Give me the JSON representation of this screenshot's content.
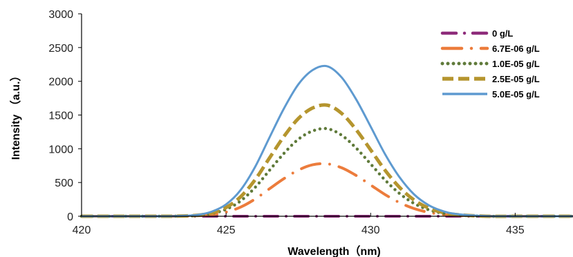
{
  "chart_data": {
    "type": "line",
    "title": "",
    "xlabel": "Wavelength（nm)",
    "ylabel": "Intensity （a.u.）",
    "xlim": [
      420,
      437
    ],
    "ylim": [
      0,
      3000
    ],
    "x_ticks": [
      "420",
      "425",
      "430",
      "435"
    ],
    "y_ticks": [
      "0",
      "500",
      "1000",
      "1500",
      "2000",
      "2500",
      "3000"
    ],
    "grid": false,
    "legend_position": "top-right",
    "series": [
      {
        "name": "0 g/L",
        "color": "#8e2c7b",
        "style": "dash-dot",
        "x": [
          420,
          421,
          422,
          423,
          424,
          425,
          426,
          427,
          428,
          429,
          430,
          431,
          432,
          433,
          434,
          435,
          436,
          437
        ],
        "y": [
          0,
          0,
          0,
          0,
          0,
          0,
          0,
          0,
          0,
          0,
          0,
          0,
          0,
          0,
          0,
          0,
          0,
          0
        ]
      },
      {
        "name": "6.7E-06 g/L",
        "color": "#ec7c3c",
        "style": "long-dash-dot",
        "x": [
          420,
          421,
          422,
          423,
          423.5,
          424,
          424.5,
          425,
          425.5,
          426,
          426.5,
          427,
          427.5,
          428,
          428.5,
          429,
          429.5,
          430,
          430.5,
          431,
          431.5,
          432,
          432.5,
          433,
          434,
          435,
          436,
          437
        ],
        "y": [
          0,
          0,
          0,
          0,
          2,
          7,
          23,
          61,
          135,
          254,
          407,
          557,
          684,
          763,
          776,
          718,
          604,
          463,
          321,
          202,
          114,
          58,
          26,
          11,
          0,
          0,
          0,
          0
        ]
      },
      {
        "name": "1.0E-05 g/L",
        "color": "#5f7a3a",
        "style": "dotted",
        "x": [
          420,
          421,
          422,
          423,
          423.5,
          424,
          424.5,
          425,
          425.5,
          426,
          426.5,
          427,
          427.5,
          428,
          428.5,
          429,
          429.5,
          430,
          430.5,
          431,
          431.5,
          432,
          432.5,
          433,
          434,
          435,
          436,
          437
        ],
        "y": [
          0,
          0,
          0,
          0,
          3,
          11,
          40,
          103,
          226,
          425,
          680,
          931,
          1141,
          1265,
          1297,
          1200,
          1010,
          775,
          536,
          337,
          190,
          97,
          44,
          18,
          0,
          0,
          0,
          0
        ]
      },
      {
        "name": "2.5E-05 g/L",
        "color": "#b5952e",
        "style": "dashed",
        "x": [
          420,
          421,
          422,
          423,
          423.5,
          424,
          424.5,
          425,
          425.5,
          426,
          426.5,
          427,
          427.5,
          428,
          428.5,
          429,
          429.5,
          430,
          430.5,
          431,
          431.5,
          432,
          432.5,
          433,
          434,
          435,
          436,
          437
        ],
        "y": [
          0,
          0,
          0,
          0,
          4,
          14,
          50,
          130,
          287,
          539,
          863,
          1182,
          1448,
          1606,
          1646,
          1523,
          1282,
          984,
          681,
          428,
          241,
          123,
          56,
          23,
          0,
          0,
          0,
          0
        ]
      },
      {
        "name": "5.0E-05 g/L",
        "color": "#5e9ad0",
        "style": "solid",
        "x": [
          420,
          421,
          422,
          423,
          423.5,
          424,
          424.5,
          425,
          425.5,
          426,
          426.5,
          427,
          427.5,
          428,
          428.5,
          429,
          429.5,
          430,
          430.5,
          431,
          431.5,
          432,
          432.5,
          433,
          434,
          435,
          436,
          437
        ],
        "y": [
          0,
          0,
          0,
          0,
          6,
          19,
          68,
          176,
          387,
          728,
          1166,
          1596,
          1955,
          2168,
          2223,
          2056,
          1731,
          1329,
          919,
          578,
          325,
          166,
          76,
          31,
          3,
          0,
          0,
          0
        ]
      }
    ]
  }
}
